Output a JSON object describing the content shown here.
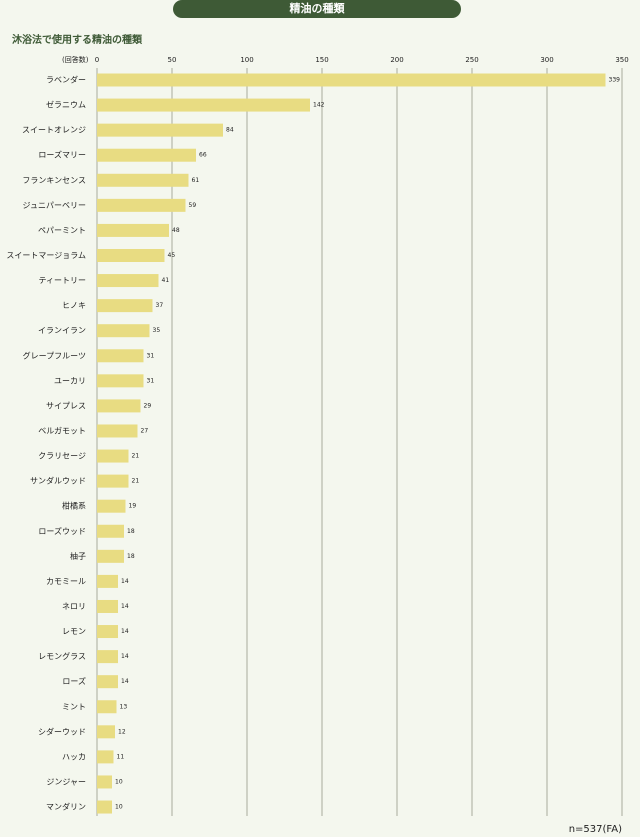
{
  "chart_data": {
    "type": "bar",
    "orientation": "horizontal",
    "title": "精油の種類",
    "subtitle": "沐浴法で使用する精油の種類",
    "x_label": "(回答数)",
    "annotation": "n=537(FA)",
    "categories": [
      "ラベンダー",
      "ゼラニウム",
      "スイートオレンジ",
      "ローズマリー",
      "フランキンセンス",
      "ジュニパーベリー",
      "ペパーミント",
      "スイートマージョラム",
      "ティートリー",
      "ヒノキ",
      "イランイラン",
      "グレープフルーツ",
      "ユーカリ",
      "サイプレス",
      "ベルガモット",
      "クラリセージ",
      "サンダルウッド",
      "柑橘系",
      "ローズウッド",
      "柚子",
      "カモミール",
      "ネロリ",
      "レモン",
      "レモングラス",
      "ローズ",
      "ミント",
      "シダーウッド",
      "ハッカ",
      "ジンジャー",
      "マンダリン"
    ],
    "values": [
      339,
      142,
      84,
      66,
      61,
      59,
      48,
      45,
      41,
      37,
      35,
      31,
      31,
      29,
      27,
      21,
      21,
      19,
      18,
      18,
      14,
      14,
      14,
      14,
      14,
      13,
      12,
      11,
      10,
      10
    ],
    "color": "#e8dc82",
    "xlim": [
      0,
      350
    ],
    "xticks": [
      0,
      50,
      100,
      150,
      200,
      250,
      300,
      350
    ],
    "grid": true
  }
}
